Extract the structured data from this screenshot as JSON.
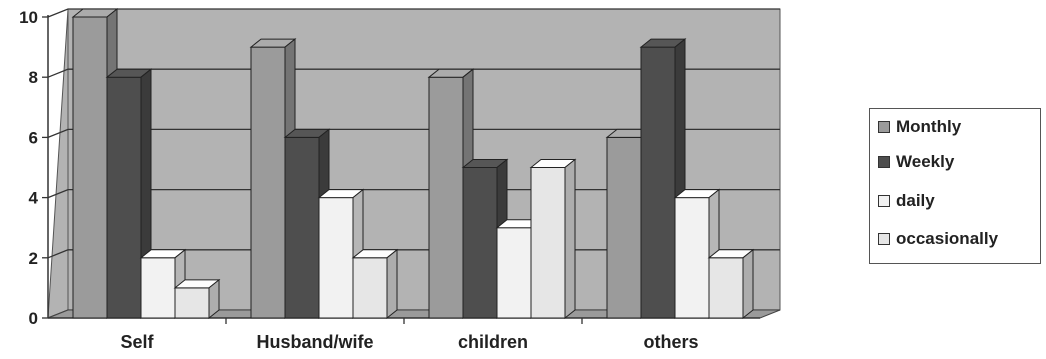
{
  "chart_data": {
    "type": "bar",
    "title": "",
    "xlabel": "",
    "ylabel": "",
    "ylim": [
      0,
      10
    ],
    "yticks": [
      "0",
      "2",
      "4",
      "6",
      "8",
      "10"
    ],
    "categories": [
      "Self",
      "Husband/wife",
      "children",
      "others"
    ],
    "series": [
      {
        "name": "Monthly",
        "values": [
          10,
          9,
          8,
          6
        ],
        "color": "#9b9b9b"
      },
      {
        "name": "Weekly",
        "values": [
          8,
          6,
          5,
          9
        ],
        "color": "#4e4e4e"
      },
      {
        "name": "daily",
        "values": [
          2,
          4,
          3,
          4
        ],
        "color": "#f2f2f2"
      },
      {
        "name": "occasionally",
        "values": [
          1,
          2,
          5,
          2
        ],
        "color": "#e6e6e6"
      }
    ],
    "grid": true,
    "legend_position": "right",
    "style": "3d-clustered-column",
    "wall_color": "#b3b3b3"
  }
}
